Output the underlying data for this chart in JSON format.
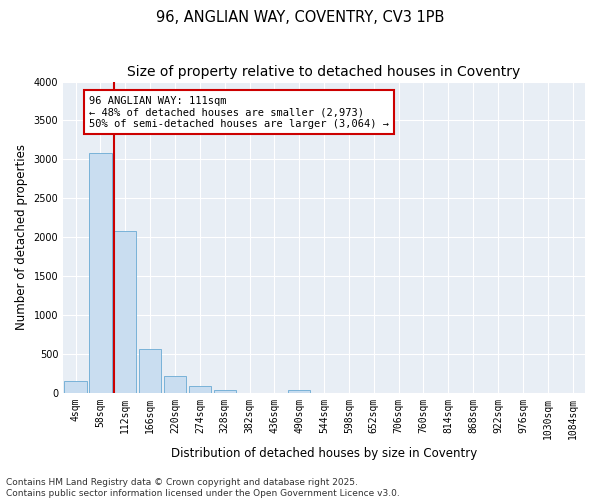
{
  "title": "96, ANGLIAN WAY, COVENTRY, CV3 1PB",
  "subtitle": "Size of property relative to detached houses in Coventry",
  "xlabel": "Distribution of detached houses by size in Coventry",
  "ylabel": "Number of detached properties",
  "bin_labels": [
    "4sqm",
    "58sqm",
    "112sqm",
    "166sqm",
    "220sqm",
    "274sqm",
    "328sqm",
    "382sqm",
    "436sqm",
    "490sqm",
    "544sqm",
    "598sqm",
    "652sqm",
    "706sqm",
    "760sqm",
    "814sqm",
    "868sqm",
    "922sqm",
    "976sqm",
    "1030sqm",
    "1084sqm"
  ],
  "bar_values": [
    150,
    3080,
    2080,
    560,
    210,
    80,
    30,
    0,
    0,
    30,
    0,
    0,
    0,
    0,
    0,
    0,
    0,
    0,
    0,
    0,
    0
  ],
  "bar_color": "#c9ddf0",
  "bar_edge_color": "#6aaad4",
  "vline_x_index": 2,
  "vline_color": "#cc0000",
  "annotation_text": "96 ANGLIAN WAY: 111sqm\n← 48% of detached houses are smaller (2,973)\n50% of semi-detached houses are larger (3,064) →",
  "annotation_box_facecolor": "#ffffff",
  "annotation_box_edgecolor": "#cc0000",
  "ylim": [
    0,
    4000
  ],
  "yticks": [
    0,
    500,
    1000,
    1500,
    2000,
    2500,
    3000,
    3500,
    4000
  ],
  "footer_text": "Contains HM Land Registry data © Crown copyright and database right 2025.\nContains public sector information licensed under the Open Government Licence v3.0.",
  "fig_facecolor": "#ffffff",
  "axes_facecolor": "#e8eef5",
  "grid_color": "#ffffff",
  "title_fontsize": 10.5,
  "axis_label_fontsize": 8.5,
  "tick_fontsize": 7,
  "annotation_fontsize": 7.5,
  "footer_fontsize": 6.5
}
